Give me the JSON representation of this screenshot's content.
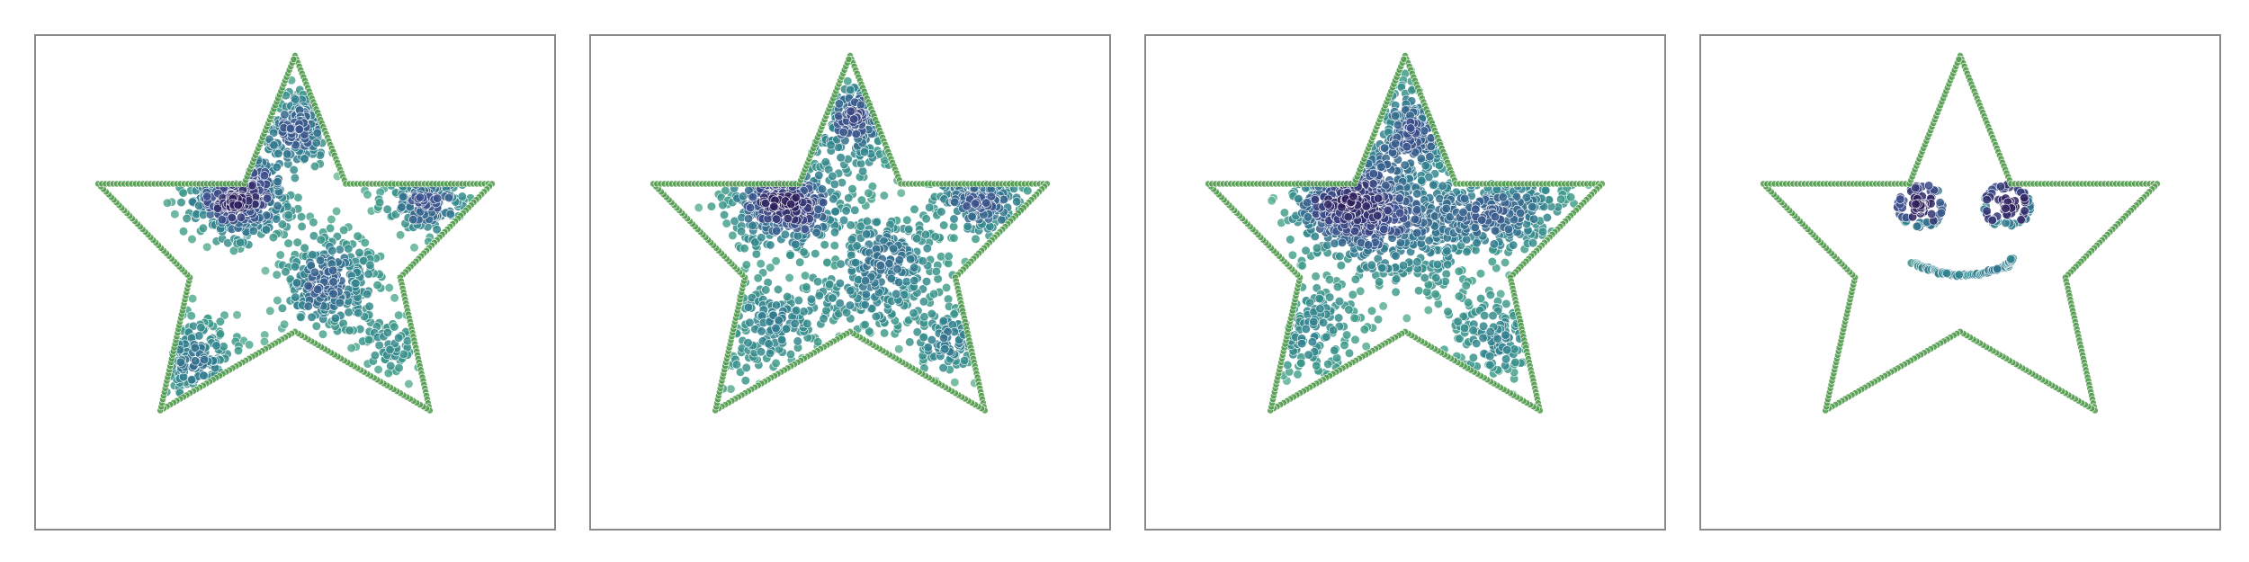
{
  "chart_data": [
    {
      "type": "scatter",
      "title": "",
      "xlabel": "",
      "ylabel": "",
      "grid": false,
      "legend": "none",
      "outline_color": "#4f9a4a",
      "colormap": [
        "#2d1e5c",
        "#3b4f8c",
        "#30808e",
        "#3f9c8a",
        "#7cc3a0"
      ],
      "star_vertices": [
        [
          50,
          96
        ],
        [
          59.8,
          70
        ],
        [
          88,
          70
        ],
        [
          70.3,
          51
        ],
        [
          76,
          24
        ],
        [
          50,
          40
        ],
        [
          24,
          24
        ],
        [
          29.7,
          51
        ],
        [
          12,
          70
        ],
        [
          40.2,
          70
        ]
      ],
      "clusters": [
        {
          "name": "",
          "cx": 39,
          "cy": 68,
          "spread": 5,
          "count": 420
        },
        {
          "name": "",
          "cx": 57,
          "cy": 50,
          "spread": 5,
          "count": 300
        },
        {
          "name": "",
          "cx": 75,
          "cy": 68,
          "spread": 4.5,
          "count": 170
        },
        {
          "name": "",
          "cx": 51,
          "cy": 82,
          "spread": 4,
          "count": 170
        },
        {
          "name": "",
          "cx": 30,
          "cy": 35,
          "spread": 4.5,
          "count": 150
        },
        {
          "name": "",
          "cx": 68,
          "cy": 37,
          "spread": 3.5,
          "count": 60
        }
      ]
    },
    {
      "type": "scatter",
      "title": "",
      "xlabel": "",
      "ylabel": "",
      "grid": false,
      "legend": "none",
      "outline_color": "#4f9a4a",
      "colormap": [
        "#2d1e5c",
        "#3b4f8c",
        "#30808e",
        "#3f9c8a",
        "#7cc3a0"
      ],
      "star_vertices": [
        [
          50,
          96
        ],
        [
          59.8,
          70
        ],
        [
          88,
          70
        ],
        [
          70.3,
          51
        ],
        [
          76,
          24
        ],
        [
          50,
          40
        ],
        [
          24,
          24
        ],
        [
          29.7,
          51
        ],
        [
          12,
          70
        ],
        [
          40.2,
          70
        ]
      ],
      "clusters": [
        {
          "name": "",
          "cx": 37,
          "cy": 68,
          "spread": 5.5,
          "count": 380
        },
        {
          "name": "",
          "cx": 56,
          "cy": 52,
          "spread": 7,
          "count": 330
        },
        {
          "name": "",
          "cx": 75,
          "cy": 69,
          "spread": 5,
          "count": 160
        },
        {
          "name": "",
          "cx": 52,
          "cy": 82,
          "spread": 4.5,
          "count": 170
        },
        {
          "name": "",
          "cx": 34,
          "cy": 40,
          "spread": 6,
          "count": 170
        },
        {
          "name": "",
          "cx": 69,
          "cy": 38,
          "spread": 4,
          "count": 90
        }
      ]
    },
    {
      "type": "scatter",
      "title": "",
      "xlabel": "",
      "ylabel": "",
      "grid": false,
      "legend": "none",
      "outline_color": "#4f9a4a",
      "colormap": [
        "#2d1e5c",
        "#3b4f8c",
        "#30808e",
        "#3f9c8a",
        "#7cc3a0"
      ],
      "star_vertices": [
        [
          50,
          96
        ],
        [
          59.8,
          70
        ],
        [
          88,
          70
        ],
        [
          70.3,
          51
        ],
        [
          76,
          24
        ],
        [
          50,
          40
        ],
        [
          24,
          24
        ],
        [
          29.7,
          51
        ],
        [
          12,
          70
        ],
        [
          40.2,
          70
        ]
      ],
      "clusters": [
        {
          "name": "",
          "cx": 39,
          "cy": 68,
          "spread": 6,
          "count": 450
        },
        {
          "name": "",
          "cx": 53,
          "cy": 62,
          "spread": 8,
          "count": 420
        },
        {
          "name": "",
          "cx": 70,
          "cy": 66,
          "spread": 6,
          "count": 200
        },
        {
          "name": "",
          "cx": 52,
          "cy": 82,
          "spread": 5,
          "count": 160
        },
        {
          "name": "",
          "cx": 32,
          "cy": 40,
          "spread": 5.5,
          "count": 130
        },
        {
          "name": "",
          "cx": 67,
          "cy": 38,
          "spread": 5,
          "count": 120
        }
      ]
    },
    {
      "type": "scatter",
      "title": "",
      "xlabel": "",
      "ylabel": "",
      "grid": false,
      "legend": "none",
      "outline_color": "#4f9a4a",
      "colormap": [
        "#2d1e5c",
        "#3b4f8c",
        "#30808e",
        "#3f9c8a",
        "#7cc3a0"
      ],
      "star_vertices": [
        [
          50,
          96
        ],
        [
          59.8,
          70
        ],
        [
          88,
          70
        ],
        [
          70.3,
          51
        ],
        [
          76,
          24
        ],
        [
          50,
          40
        ],
        [
          24,
          24
        ],
        [
          29.7,
          51
        ],
        [
          12,
          70
        ],
        [
          40.2,
          70
        ]
      ],
      "face": {
        "eyes": [
          {
            "cx": 42.5,
            "cy": 65.5,
            "ring_r": 4.2,
            "count": 110
          },
          {
            "cx": 59,
            "cy": 65.5,
            "ring_r": 4.2,
            "count": 110
          }
        ],
        "mouth": {
          "cx": 50.5,
          "cy": 56,
          "r": 10,
          "from_deg": 205,
          "to_deg": 345,
          "count": 70
        }
      }
    }
  ]
}
